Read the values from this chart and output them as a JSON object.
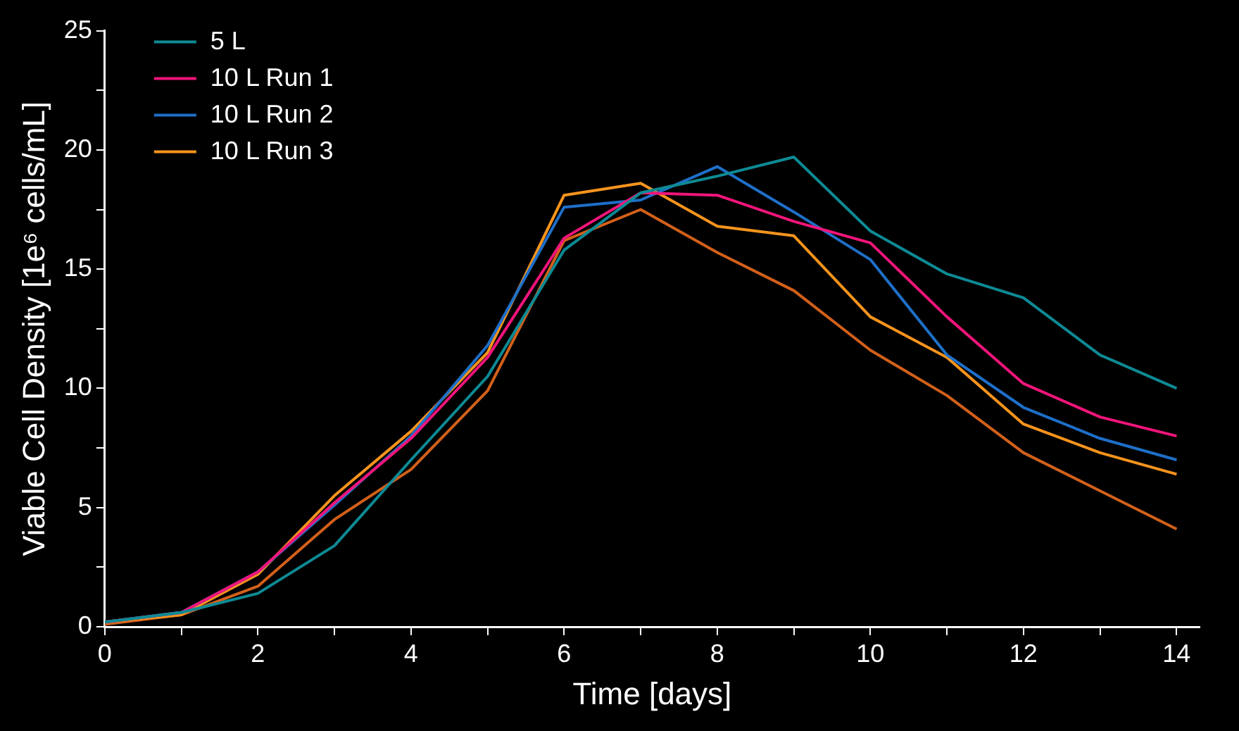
{
  "chart_data": {
    "type": "line",
    "xlabel": "Time [days]",
    "ylabel": "Viable Cell Density [1e⁶ cells/mL]",
    "x": [
      0,
      1,
      2,
      3,
      4,
      5,
      6,
      7,
      8,
      9,
      10,
      11,
      12,
      13,
      14
    ],
    "xlim": [
      0,
      14.3
    ],
    "xticks": [
      0,
      {
        "value": 1,
        "label": null
      },
      2,
      {
        "value": 3,
        "label": null
      },
      4,
      {
        "value": 5,
        "label": null
      },
      6,
      {
        "value": 7,
        "label": null
      },
      8,
      {
        "value": 9,
        "label": null
      },
      10,
      {
        "value": 11,
        "label": null
      },
      12,
      {
        "value": 13,
        "label": null
      },
      14
    ],
    "ylim": [
      0,
      25
    ],
    "yticks": [
      0,
      {
        "value": 2.5,
        "label": null
      },
      5,
      {
        "value": 7.5,
        "label": null
      },
      10,
      {
        "value": 12.5,
        "label": null
      },
      15,
      {
        "value": 17.5,
        "label": null
      },
      20,
      {
        "value": 22.5,
        "label": null
      },
      25
    ],
    "grid": false,
    "legend": "top left",
    "marker": "none",
    "line_style": "solid",
    "series": [
      {
        "name": "5 L",
        "color": "#0e8a94",
        "values": [
          0.2,
          0.6,
          1.4,
          3.4,
          7.0,
          10.5,
          15.8,
          18.2,
          18.9,
          19.7,
          16.6,
          14.8,
          13.8,
          11.4,
          10.0
        ]
      },
      {
        "name": "10 L Run 1",
        "color": "#f0157a",
        "values": [
          0.2,
          0.6,
          2.3,
          5.2,
          7.9,
          11.3,
          16.3,
          18.2,
          18.1,
          17.0,
          16.1,
          13.0,
          10.2,
          8.8,
          8.0
        ]
      },
      {
        "name": "10 L Run 2",
        "color": "#1e6fc8",
        "values": [
          0.2,
          0.6,
          2.3,
          5.1,
          8.0,
          11.8,
          17.6,
          17.9,
          19.3,
          17.4,
          15.4,
          11.4,
          9.2,
          7.9,
          7.0
        ]
      },
      {
        "name": "10 L Run 3",
        "color": "#f7941d",
        "values": [
          0.2,
          0.5,
          2.2,
          5.5,
          8.2,
          11.5,
          18.1,
          18.6,
          16.8,
          16.4,
          13.0,
          11.3,
          8.5,
          7.3,
          6.4
        ]
      },
      {
        "color": "#d2601a",
        "values": [
          0.1,
          0.5,
          1.7,
          4.5,
          6.6,
          9.9,
          16.2,
          17.5,
          15.7,
          14.1,
          11.6,
          9.7,
          7.3,
          5.7,
          4.1
        ]
      }
    ]
  }
}
